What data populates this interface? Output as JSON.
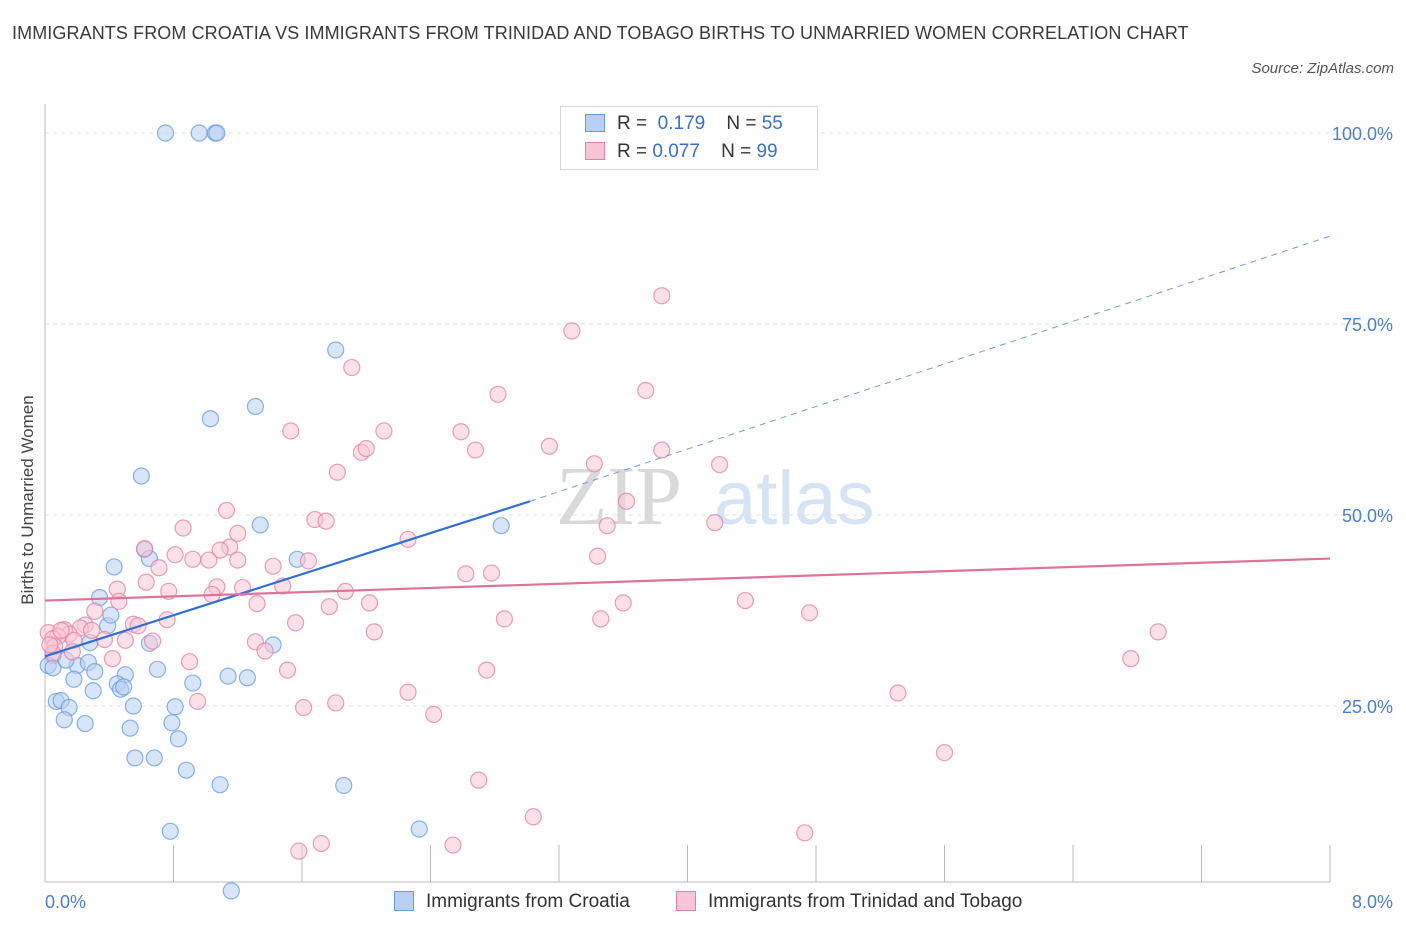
{
  "chart_data": {
    "type": "scatter",
    "title": "IMMIGRANTS FROM CROATIA VS IMMIGRANTS FROM TRINIDAD AND TOBAGO BIRTHS TO UNMARRIED WOMEN CORRELATION CHART",
    "source": "Source: ZipAtlas.com",
    "ylabel": "Births to Unmarried Women",
    "xlim": [
      0,
      8
    ],
    "ylim": [
      0,
      100
    ],
    "x_tick_labels": [
      "0.0%",
      "8.0%"
    ],
    "y_tick_labels": [
      "100.0%",
      "75.0%",
      "50.0%",
      "25.0%"
    ],
    "y_ticks": [
      100,
      75,
      50,
      25
    ],
    "grid": true,
    "legend_position": "top-center",
    "watermark": "ZIPatlas",
    "series": [
      {
        "name": "Immigrants from Croatia",
        "R": "0.179",
        "N": "55",
        "color": "#6699e0",
        "fill": "#b8d0f3",
        "trend": {
          "x": [
            0,
            3.02
          ],
          "y": [
            31.5,
            51.8
          ],
          "dashed_to": [
            8.0,
            86.5
          ]
        },
        "points": [
          [
            0.75,
            100
          ],
          [
            0.96,
            100
          ],
          [
            1.06,
            100
          ],
          [
            1.07,
            100
          ],
          [
            1.81,
            71.6
          ],
          [
            1.31,
            64.2
          ],
          [
            1.03,
            62.6
          ],
          [
            0.6,
            55.1
          ],
          [
            1.34,
            48.7
          ],
          [
            2.84,
            48.6
          ],
          [
            0.62,
            45.5
          ],
          [
            0.65,
            44.3
          ],
          [
            1.57,
            44.2
          ],
          [
            0.43,
            43.2
          ],
          [
            0.34,
            39.2
          ],
          [
            0.39,
            35.5
          ],
          [
            0.41,
            36.9
          ],
          [
            0.28,
            33.3
          ],
          [
            0.65,
            33.2
          ],
          [
            1.42,
            33.0
          ],
          [
            0.05,
            31.6
          ],
          [
            0.2,
            30.3
          ],
          [
            0.27,
            30.7
          ],
          [
            0.02,
            30.3
          ],
          [
            0.05,
            30.0
          ],
          [
            0.7,
            29.8
          ],
          [
            0.31,
            29.5
          ],
          [
            0.5,
            29.1
          ],
          [
            0.92,
            28.0
          ],
          [
            1.14,
            28.9
          ],
          [
            0.45,
            27.9
          ],
          [
            1.26,
            28.7
          ],
          [
            0.47,
            27.2
          ],
          [
            0.49,
            27.5
          ],
          [
            0.18,
            28.5
          ],
          [
            0.3,
            27.0
          ],
          [
            0.07,
            25.6
          ],
          [
            0.1,
            25.7
          ],
          [
            0.15,
            24.8
          ],
          [
            0.55,
            25.0
          ],
          [
            0.81,
            24.9
          ],
          [
            0.12,
            23.2
          ],
          [
            0.25,
            22.7
          ],
          [
            0.53,
            22.1
          ],
          [
            0.79,
            22.8
          ],
          [
            0.83,
            20.7
          ],
          [
            0.56,
            18.2
          ],
          [
            0.68,
            18.2
          ],
          [
            0.88,
            16.6
          ],
          [
            1.09,
            14.7
          ],
          [
            1.86,
            14.6
          ],
          [
            0.78,
            8.6
          ],
          [
            2.33,
            8.9
          ],
          [
            1.16,
            0.8
          ],
          [
            0.13,
            31.0
          ]
        ]
      },
      {
        "name": "Immigrants from Trinidad and Tobago",
        "R": "0.077",
        "N": "99",
        "color": "#e37fa1",
        "fill": "#f7c6d6",
        "trend": {
          "x": [
            0,
            8.0
          ],
          "y": [
            38.8,
            44.3
          ]
        },
        "points": [
          [
            3.84,
            78.7
          ],
          [
            3.28,
            74.1
          ],
          [
            1.91,
            69.3
          ],
          [
            2.82,
            65.8
          ],
          [
            3.74,
            66.3
          ],
          [
            1.53,
            61.0
          ],
          [
            2.11,
            61.0
          ],
          [
            2.59,
            60.9
          ],
          [
            3.14,
            59.0
          ],
          [
            1.97,
            58.2
          ],
          [
            2.0,
            58.7
          ],
          [
            2.68,
            58.5
          ],
          [
            3.84,
            58.5
          ],
          [
            3.42,
            56.7
          ],
          [
            4.2,
            56.6
          ],
          [
            1.82,
            55.6
          ],
          [
            3.62,
            51.8
          ],
          [
            1.13,
            50.6
          ],
          [
            1.68,
            49.4
          ],
          [
            1.75,
            49.2
          ],
          [
            3.5,
            48.6
          ],
          [
            4.17,
            49.0
          ],
          [
            0.86,
            48.3
          ],
          [
            1.2,
            47.6
          ],
          [
            2.26,
            46.8
          ],
          [
            0.62,
            45.6
          ],
          [
            1.15,
            45.8
          ],
          [
            1.09,
            45.4
          ],
          [
            0.81,
            44.8
          ],
          [
            0.92,
            44.2
          ],
          [
            1.02,
            44.1
          ],
          [
            1.2,
            44.1
          ],
          [
            1.64,
            44.0
          ],
          [
            1.42,
            43.3
          ],
          [
            0.71,
            43.1
          ],
          [
            3.44,
            44.6
          ],
          [
            2.62,
            42.3
          ],
          [
            2.78,
            42.4
          ],
          [
            0.63,
            41.2
          ],
          [
            1.07,
            40.6
          ],
          [
            1.23,
            40.5
          ],
          [
            1.48,
            40.7
          ],
          [
            0.45,
            40.3
          ],
          [
            0.77,
            40.0
          ],
          [
            1.87,
            40.0
          ],
          [
            1.04,
            39.6
          ],
          [
            0.46,
            38.7
          ],
          [
            1.32,
            38.4
          ],
          [
            1.77,
            38.0
          ],
          [
            2.02,
            38.5
          ],
          [
            3.6,
            38.5
          ],
          [
            4.36,
            38.8
          ],
          [
            0.31,
            37.4
          ],
          [
            0.76,
            36.3
          ],
          [
            2.86,
            36.4
          ],
          [
            3.46,
            36.4
          ],
          [
            4.76,
            37.2
          ],
          [
            0.55,
            35.7
          ],
          [
            0.58,
            35.5
          ],
          [
            0.25,
            35.6
          ],
          [
            0.22,
            35.2
          ],
          [
            0.12,
            35.0
          ],
          [
            0.02,
            34.6
          ],
          [
            0.15,
            34.4
          ],
          [
            0.08,
            34.1
          ],
          [
            0.05,
            33.8
          ],
          [
            0.18,
            33.6
          ],
          [
            0.37,
            33.7
          ],
          [
            0.5,
            33.6
          ],
          [
            0.67,
            33.5
          ],
          [
            1.31,
            33.4
          ],
          [
            1.56,
            35.9
          ],
          [
            2.05,
            34.7
          ],
          [
            6.93,
            34.7
          ],
          [
            0.06,
            32.8
          ],
          [
            0.17,
            32.1
          ],
          [
            0.42,
            31.2
          ],
          [
            1.37,
            32.2
          ],
          [
            0.9,
            30.8
          ],
          [
            0.05,
            31.9
          ],
          [
            6.76,
            31.2
          ],
          [
            1.51,
            29.7
          ],
          [
            2.75,
            29.7
          ],
          [
            2.26,
            26.8
          ],
          [
            5.31,
            26.7
          ],
          [
            0.95,
            25.6
          ],
          [
            1.61,
            24.8
          ],
          [
            1.81,
            25.4
          ],
          [
            2.42,
            23.9
          ],
          [
            5.6,
            18.9
          ],
          [
            2.7,
            15.3
          ],
          [
            3.04,
            10.5
          ],
          [
            4.73,
            8.4
          ],
          [
            1.72,
            7.0
          ],
          [
            2.54,
            6.8
          ],
          [
            1.58,
            6.0
          ],
          [
            0.03,
            33.0
          ],
          [
            0.1,
            34.9
          ],
          [
            0.29,
            34.9
          ]
        ]
      }
    ]
  },
  "legend": {
    "r_label": "R =",
    "n_label": "N =",
    "rows": [
      {
        "r": "0.179",
        "n": "55"
      },
      {
        "r": "0.077",
        "n": "99"
      }
    ]
  },
  "bottom_legend": [
    "Immigrants from Croatia",
    "Immigrants from Trinidad and Tobago"
  ]
}
